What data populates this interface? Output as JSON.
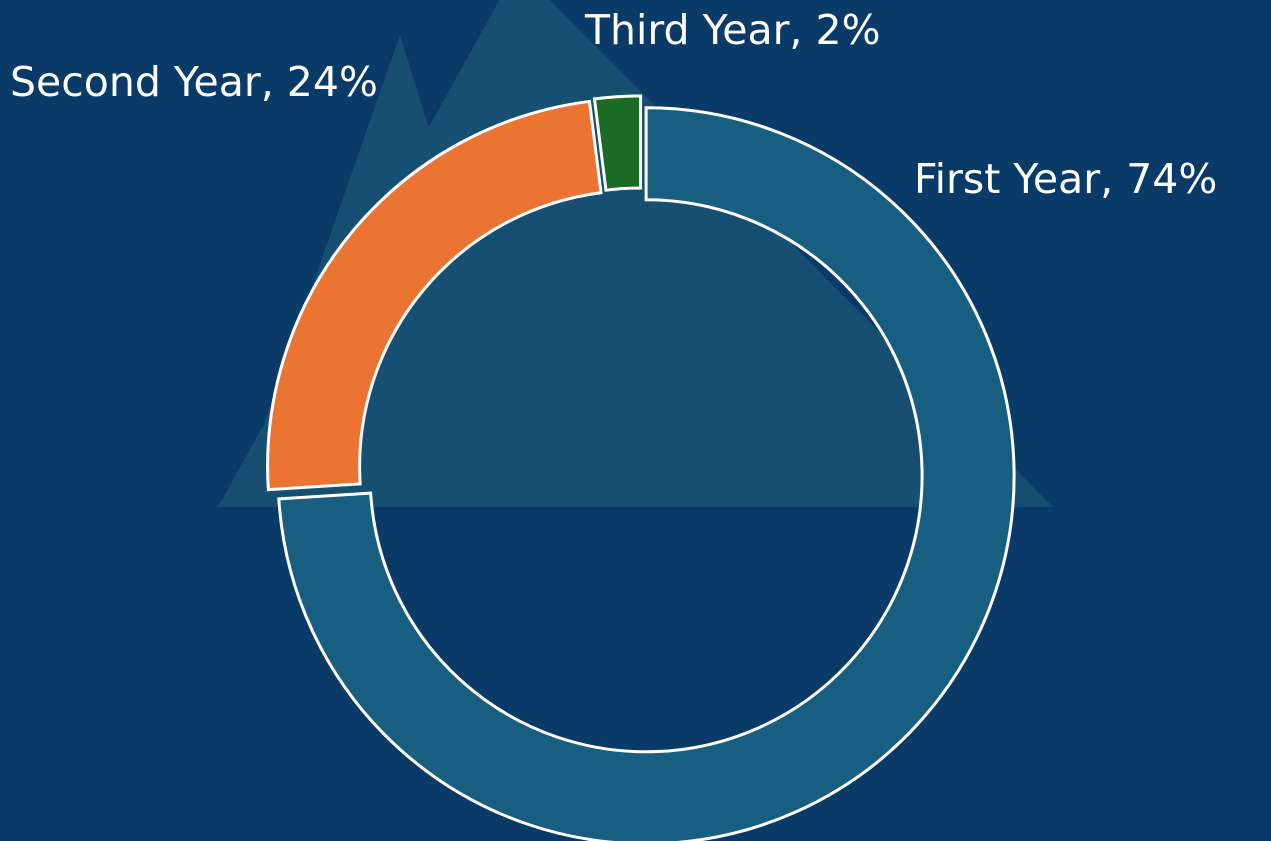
{
  "chart_data": {
    "type": "donut",
    "values": [
      74,
      24,
      2
    ],
    "value_labels": [
      "First Year, 74%",
      "Second Year, 24%",
      "Third Year, 2%"
    ],
    "colors": [
      "#175e80",
      "#eb7433",
      "#1b6b26"
    ]
  }
}
